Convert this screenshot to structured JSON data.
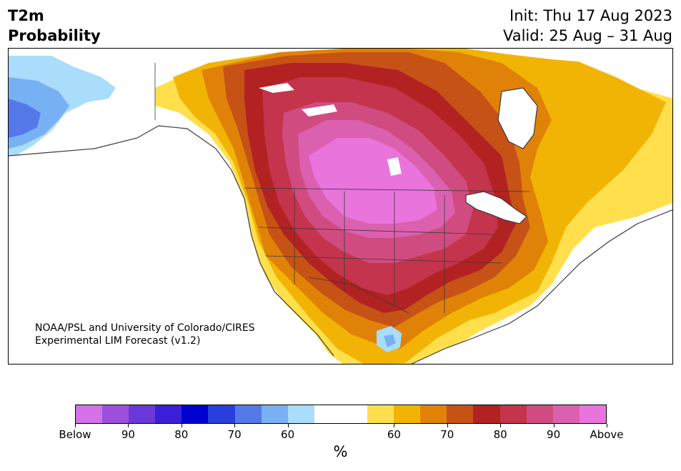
{
  "header": {
    "title_line1": "T2m",
    "title_line2": "Probability",
    "init": "Init: Thu 17 Aug 2023",
    "valid": "Valid: 25 Aug – 31 Aug"
  },
  "map": {
    "region": "North America",
    "credit_line1": "NOAA/PSL and University of Colorado/CIRES",
    "credit_line2": "Experimental LIM Forecast (v1.2)"
  },
  "colorbar": {
    "colors": [
      "#d470e8",
      "#9c50dc",
      "#6a38d8",
      "#3a1ed8",
      "#0000d0",
      "#2a3ede",
      "#5478e8",
      "#78b0f4",
      "#aadcfc",
      "#ffffff",
      "#ffffff",
      "#ffe04c",
      "#f2b404",
      "#e08208",
      "#c65216",
      "#b22222",
      "#c4344c",
      "#d04c80",
      "#dc60b0",
      "#e874dc"
    ],
    "tick_labels": [
      "Below",
      "90",
      "80",
      "70",
      "60",
      "60",
      "70",
      "80",
      "90",
      "Above"
    ],
    "units": "%"
  }
}
